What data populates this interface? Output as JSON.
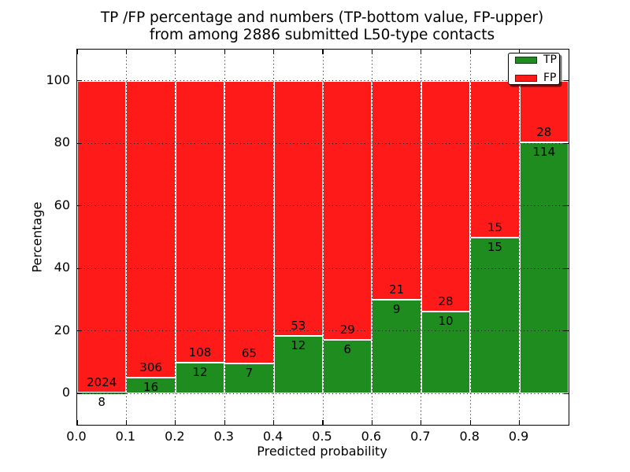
{
  "figure": {
    "title_line1": "TP /FP percentage and numbers (TP-bottom value, FP-upper)",
    "title_line2": "from among 2886 submitted L50-type contacts",
    "xlabel": "Predicted probability",
    "ylabel": "Percentage"
  },
  "chart_data": {
    "type": "bar",
    "stacked": true,
    "normalized_to_percent": 100,
    "title": "TP /FP percentage and numbers (TP-bottom value, FP-upper) from among 2886 submitted L50-type contacts",
    "xlabel": "Predicted probability",
    "ylabel": "Percentage",
    "total_submitted": 2886,
    "bin_width": 0.1,
    "bin_starts": [
      0.0,
      0.1,
      0.2,
      0.3,
      0.4,
      0.5,
      0.6,
      0.7,
      0.8,
      0.9
    ],
    "series": [
      {
        "name": "TP",
        "color": "#1e8c1e",
        "counts": [
          8,
          16,
          12,
          7,
          12,
          6,
          9,
          10,
          15,
          114
        ]
      },
      {
        "name": "FP",
        "color": "#ff1a1a",
        "counts": [
          2024,
          306,
          108,
          65,
          53,
          29,
          21,
          28,
          15,
          28
        ]
      }
    ],
    "tp_percent_of_bin": [
      0.39,
      4.97,
      10.0,
      9.72,
      18.46,
      17.14,
      30.0,
      26.32,
      50.0,
      80.28
    ],
    "x_tick_labels": [
      "0.0",
      "0.1",
      "0.2",
      "0.3",
      "0.4",
      "0.5",
      "0.6",
      "0.7",
      "0.8",
      "0.9"
    ],
    "y_tick_values": [
      0,
      20,
      40,
      60,
      80,
      100
    ],
    "xlim": [
      0.0,
      1.0
    ],
    "ylim": [
      -10,
      110
    ],
    "grid": true,
    "grid_style": "dotted",
    "legend": {
      "position": "upper right",
      "entries": [
        {
          "label": "TP",
          "color": "#1e8c1e"
        },
        {
          "label": "FP",
          "color": "#ff1a1a"
        }
      ]
    }
  }
}
